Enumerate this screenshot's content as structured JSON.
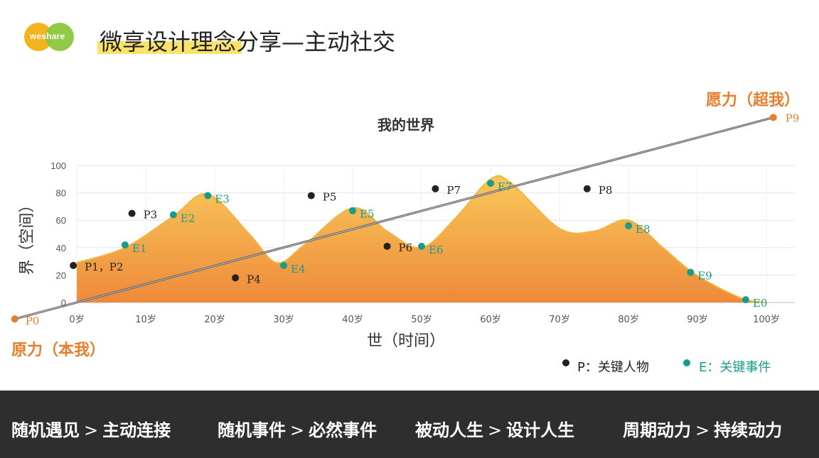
{
  "header": {
    "logo_text": "weshare",
    "title": "微享设计理念分享—主动社交"
  },
  "colors": {
    "orange_accent": "#e87d2b",
    "area_top": "#f8c85a",
    "area_bottom": "#ee8a3a",
    "person_dot": "#222222",
    "event_dot": "#1a9c8a",
    "footer_bg": "#2e2e2e",
    "logo_yellow": "#f3b51f",
    "logo_green": "#8cc63f"
  },
  "chart_data": {
    "type": "area",
    "title": "我的世界",
    "xlabel": "世（时间）",
    "ylabel": "界（空间）",
    "xlim": [
      0,
      100
    ],
    "ylim": [
      0,
      100
    ],
    "x_ticks": [
      "0岁",
      "10岁",
      "20岁",
      "30岁",
      "40岁",
      "50岁",
      "60岁",
      "70岁",
      "80岁",
      "90岁",
      "100岁"
    ],
    "y_ticks": [
      "0",
      "20",
      "40",
      "60",
      "80",
      "100"
    ],
    "curve": {
      "x": [
        0,
        7,
        14,
        19,
        25,
        29,
        33,
        40,
        45,
        50,
        55,
        60,
        63,
        70,
        75,
        80,
        85,
        89,
        93,
        97,
        100
      ],
      "y": [
        29,
        40,
        63,
        79,
        50,
        29,
        42,
        69,
        52,
        40,
        62,
        90,
        87,
        54,
        52,
        60,
        40,
        23,
        11,
        2,
        0
      ]
    },
    "events": [
      {
        "label": "E1",
        "x": 7,
        "y": 42
      },
      {
        "label": "E2",
        "x": 14,
        "y": 64
      },
      {
        "label": "E3",
        "x": 19,
        "y": 78
      },
      {
        "label": "E4",
        "x": 30,
        "y": 27
      },
      {
        "label": "E5",
        "x": 40,
        "y": 67
      },
      {
        "label": "E6",
        "x": 50,
        "y": 41
      },
      {
        "label": "E7",
        "x": 60,
        "y": 87
      },
      {
        "label": "E8",
        "x": 80,
        "y": 56
      },
      {
        "label": "E9",
        "x": 89,
        "y": 22
      },
      {
        "label": "E0",
        "x": 97,
        "y": 2
      }
    ],
    "persons": [
      {
        "label": "P1，P2",
        "x": -0.5,
        "y": 27
      },
      {
        "label": "P3",
        "x": 8,
        "y": 65
      },
      {
        "label": "P4",
        "x": 23,
        "y": 18
      },
      {
        "label": "P5",
        "x": 34,
        "y": 78
      },
      {
        "label": "P6",
        "x": 45,
        "y": 41
      },
      {
        "label": "P7",
        "x": 52,
        "y": 83
      },
      {
        "label": "P8",
        "x": 74,
        "y": 83
      }
    ],
    "trend": {
      "start": {
        "label": "P0",
        "x": -9,
        "y": -12
      },
      "end": {
        "label": "P9",
        "x": 101,
        "y": 135
      }
    },
    "legend": [
      {
        "marker": "person",
        "label": "P：关键人物"
      },
      {
        "marker": "event",
        "label": "E：关键事件"
      }
    ],
    "annotations": {
      "low_end": "原力（本我）",
      "high_end": "愿力（超我）"
    },
    "grid": true
  },
  "footer": {
    "arrow": ">",
    "items": [
      {
        "from": "随机遇见",
        "to": "主动连接"
      },
      {
        "from": "随机事件",
        "to": "必然事件"
      },
      {
        "from": "被动人生",
        "to": "设计人生"
      },
      {
        "from": "周期动力",
        "to": "持续动力"
      }
    ]
  }
}
